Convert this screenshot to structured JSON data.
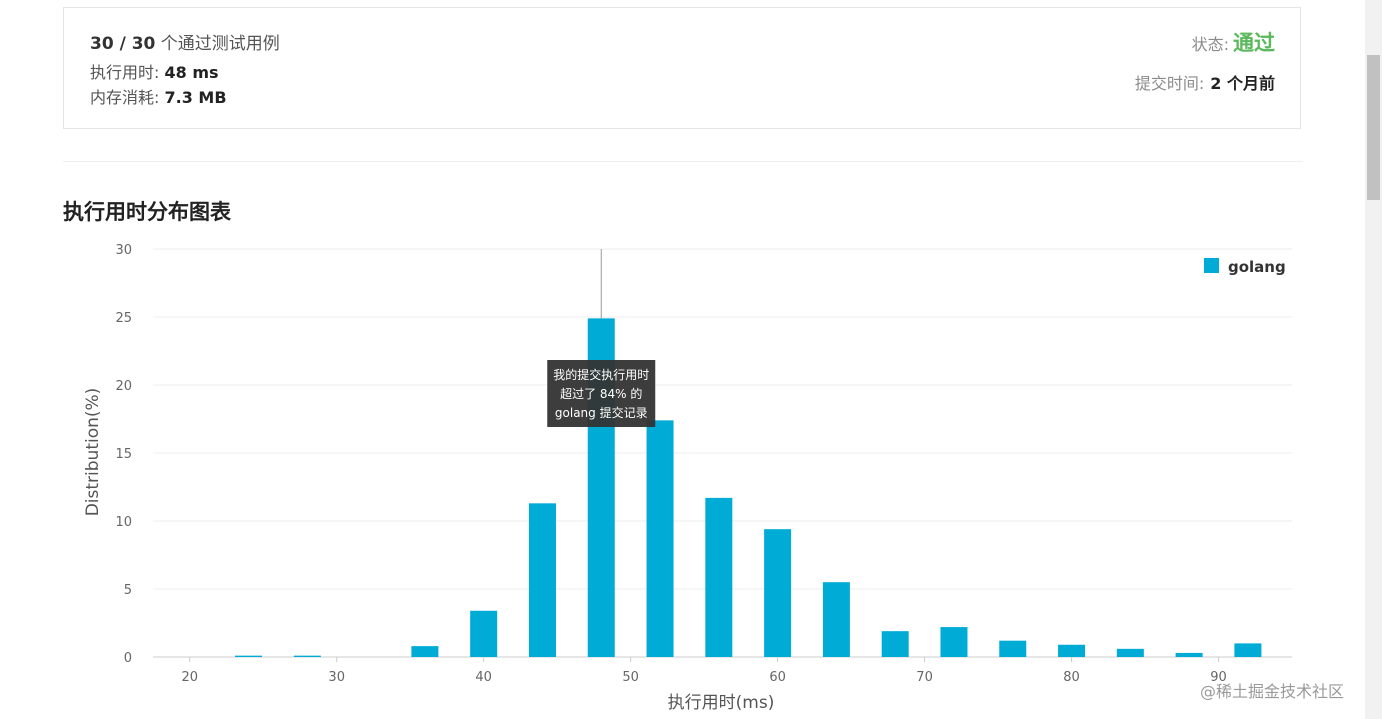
{
  "summary": {
    "cases_passed": "30 / 30",
    "cases_text": "个通过测试用例",
    "runtime_label": "执行用时:",
    "runtime_value": "48 ms",
    "memory_label": "内存消耗:",
    "memory_value": "7.3 MB",
    "status_label": "状态:",
    "status_value": "通过",
    "submit_label": "提交时间:",
    "submit_value": "2 个月前"
  },
  "section_title": "执行用时分布图表",
  "watermark": "@稀土掘金技术社区",
  "colors": {
    "bar": "#00acd6",
    "status_ok": "#5cb85c",
    "tooltip_bg": "#333333"
  },
  "chart_data": {
    "type": "bar",
    "xlabel": "执行用时(ms)",
    "ylabel": "Distribution(%)",
    "xlim": [
      17.5,
      95
    ],
    "ylim": [
      0,
      30
    ],
    "x_ticks": [
      20,
      30,
      40,
      50,
      60,
      70,
      80,
      90
    ],
    "y_ticks": [
      0,
      5,
      10,
      15,
      20,
      25,
      30
    ],
    "grid": true,
    "legend_position": "top-right",
    "series": [
      {
        "name": "golang",
        "x": [
          24,
          28,
          32,
          36,
          40,
          44,
          48,
          52,
          56,
          60,
          64,
          68,
          72,
          76,
          80,
          84,
          88,
          92
        ],
        "values": [
          0.1,
          0.1,
          0,
          0.8,
          3.4,
          11.3,
          24.9,
          17.4,
          11.7,
          9.4,
          5.5,
          1.9,
          2.2,
          1.2,
          0.9,
          0.6,
          0.3,
          1.0
        ]
      }
    ],
    "marker": {
      "x": 48
    },
    "tooltip": {
      "lines": [
        "我的提交执行用时",
        "超过了 84% 的",
        "golang 提交记录"
      ]
    }
  }
}
